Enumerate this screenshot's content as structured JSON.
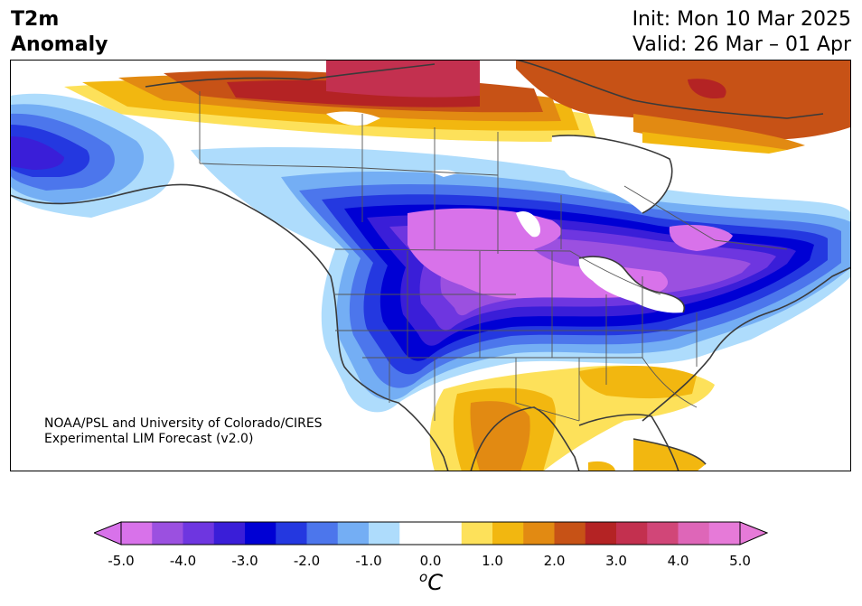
{
  "header": {
    "title_line1": "T2m",
    "title_line2": "Anomaly",
    "init": "Init: Mon 10 Mar 2025",
    "valid": "Valid: 26 Mar – 01 Apr"
  },
  "credit": {
    "line1": "NOAA/PSL and University of Colorado/CIRES",
    "line2": "Experimental LIM Forecast (v2.0)"
  },
  "colorbar": {
    "unit": "C",
    "tick_labels": [
      "-5.0",
      "-4.0",
      "-3.0",
      "-2.0",
      "-1.0",
      "0.0",
      "1.0",
      "2.0",
      "3.0",
      "4.0",
      "5.0"
    ],
    "colors": [
      "#d872ea",
      "#9b50e0",
      "#6e36e0",
      "#3a1ed8",
      "#0000d4",
      "#2438e0",
      "#4c76ec",
      "#74aef4",
      "#aedcfc",
      "#ffffff",
      "#ffffff",
      "#fde15a",
      "#f2b710",
      "#e28a12",
      "#c75216",
      "#b42324",
      "#c3304f",
      "#d14678",
      "#de66b8",
      "#e67ad8"
    ],
    "under_color": "#d872ea",
    "over_color": "#e67ad8"
  },
  "map_colors": {
    "neg5": "#d872ea",
    "neg4": "#9b50e0",
    "neg35": "#6e36e0",
    "neg3": "#3a1ed8",
    "neg25": "#0000d4",
    "neg2": "#2438e0",
    "neg15": "#4c76ec",
    "neg1": "#74aef4",
    "neg05": "#aedcfc",
    "pos05": "#fde15a",
    "pos1": "#f2b710",
    "pos15": "#e28a12",
    "pos2": "#c75216",
    "pos25": "#b42324",
    "pos3": "#c3304f",
    "pos35": "#d14678",
    "coast": "#3a3a3a",
    "border": "#555555"
  }
}
